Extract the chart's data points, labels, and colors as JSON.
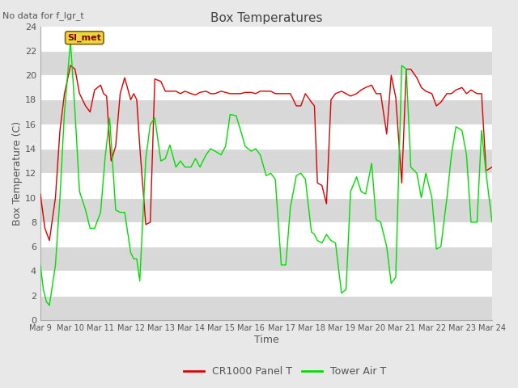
{
  "title": "Box Temperatures",
  "no_data_text": "No data for f_lgr_t",
  "si_met_label": "SI_met",
  "xlabel": "Time",
  "ylabel": "Box Temperature (C)",
  "ylim": [
    0,
    24
  ],
  "xlim": [
    0,
    15
  ],
  "xtick_labels": [
    "Mar 9",
    "Mar 10",
    "Mar 11",
    "Mar 12",
    "Mar 13",
    "Mar 14",
    "Mar 15",
    "Mar 16",
    "Mar 17",
    "Mar 18",
    "Mar 19",
    "Mar 20",
    "Mar 21",
    "Mar 22",
    "Mar 23",
    "Mar 24"
  ],
  "ytick_values": [
    0,
    2,
    4,
    6,
    8,
    10,
    12,
    14,
    16,
    18,
    20,
    22,
    24
  ],
  "red_color": "#dd0000",
  "green_color": "#00dd00",
  "fig_bg": "#e8e8e8",
  "plot_bg": "#ffffff",
  "stripe_color": "#d8d8d8",
  "legend_label_red": "CR1000 Panel T",
  "legend_label_green": "Tower Air T",
  "si_met_bg": "#e8d840",
  "si_met_border": "#8b6000",
  "si_met_text": "#8b0000",
  "red_x": [
    0.0,
    0.15,
    0.3,
    0.5,
    0.65,
    0.8,
    1.0,
    1.15,
    1.3,
    1.5,
    1.65,
    1.8,
    2.0,
    2.1,
    2.2,
    2.3,
    2.35,
    2.5,
    2.65,
    2.8,
    3.0,
    3.1,
    3.2,
    3.3,
    3.5,
    3.65,
    3.8,
    4.0,
    4.15,
    4.3,
    4.5,
    4.65,
    4.8,
    5.0,
    5.15,
    5.3,
    5.5,
    5.65,
    5.8,
    6.0,
    6.15,
    6.3,
    6.5,
    6.65,
    6.8,
    7.0,
    7.15,
    7.3,
    7.5,
    7.65,
    7.8,
    8.0,
    8.15,
    8.3,
    8.5,
    8.65,
    8.8,
    9.0,
    9.1,
    9.2,
    9.35,
    9.5,
    9.65,
    9.8,
    10.0,
    10.15,
    10.3,
    10.5,
    10.65,
    10.8,
    11.0,
    11.15,
    11.3,
    11.5,
    11.65,
    11.8,
    12.0,
    12.15,
    12.3,
    12.5,
    12.65,
    12.8,
    13.0,
    13.15,
    13.3,
    13.5,
    13.65,
    13.8,
    14.0,
    14.15,
    14.3,
    14.5,
    14.65,
    14.8,
    15.0
  ],
  "red_y": [
    10.3,
    7.5,
    6.5,
    10.0,
    15.5,
    18.5,
    20.8,
    20.5,
    18.5,
    17.5,
    17.0,
    18.8,
    19.2,
    18.5,
    18.3,
    14.5,
    13.0,
    14.2,
    18.5,
    19.8,
    18.0,
    18.5,
    18.0,
    14.2,
    7.8,
    8.0,
    19.7,
    19.5,
    18.7,
    18.7,
    18.7,
    18.5,
    18.7,
    18.5,
    18.4,
    18.6,
    18.7,
    18.5,
    18.5,
    18.7,
    18.6,
    18.5,
    18.5,
    18.5,
    18.6,
    18.6,
    18.5,
    18.7,
    18.7,
    18.7,
    18.5,
    18.5,
    18.5,
    18.5,
    17.5,
    17.5,
    18.5,
    17.8,
    17.5,
    11.2,
    11.0,
    9.5,
    18.0,
    18.5,
    18.7,
    18.5,
    18.3,
    18.5,
    18.8,
    19.0,
    19.2,
    18.5,
    18.5,
    15.2,
    20.0,
    18.2,
    11.2,
    20.5,
    20.5,
    19.8,
    19.0,
    18.7,
    18.5,
    17.5,
    17.8,
    18.5,
    18.5,
    18.8,
    19.0,
    18.5,
    18.8,
    18.5,
    18.5,
    12.2,
    12.5
  ],
  "green_x": [
    0.0,
    0.1,
    0.2,
    0.3,
    0.5,
    0.65,
    0.8,
    1.0,
    1.15,
    1.3,
    1.5,
    1.65,
    1.8,
    2.0,
    2.15,
    2.3,
    2.5,
    2.65,
    2.8,
    3.0,
    3.1,
    3.2,
    3.3,
    3.5,
    3.65,
    3.8,
    4.0,
    4.15,
    4.3,
    4.5,
    4.65,
    4.8,
    5.0,
    5.15,
    5.3,
    5.5,
    5.65,
    5.8,
    6.0,
    6.15,
    6.3,
    6.5,
    6.65,
    6.8,
    7.0,
    7.15,
    7.3,
    7.5,
    7.65,
    7.8,
    8.0,
    8.15,
    8.3,
    8.5,
    8.65,
    8.8,
    9.0,
    9.1,
    9.2,
    9.35,
    9.5,
    9.65,
    9.8,
    10.0,
    10.15,
    10.3,
    10.5,
    10.65,
    10.8,
    11.0,
    11.15,
    11.3,
    11.5,
    11.65,
    11.8,
    12.0,
    12.15,
    12.3,
    12.5,
    12.65,
    12.8,
    13.0,
    13.15,
    13.3,
    13.5,
    13.65,
    13.8,
    14.0,
    14.15,
    14.3,
    14.5,
    14.65,
    14.8,
    15.0
  ],
  "green_y": [
    4.5,
    2.5,
    1.5,
    1.2,
    4.5,
    10.0,
    17.0,
    22.8,
    17.0,
    10.5,
    9.0,
    7.5,
    7.5,
    8.8,
    13.3,
    16.5,
    9.0,
    8.8,
    8.8,
    5.5,
    5.0,
    5.0,
    3.2,
    13.2,
    16.0,
    16.5,
    13.0,
    13.2,
    14.3,
    12.5,
    13.0,
    12.5,
    12.5,
    13.2,
    12.5,
    13.5,
    14.0,
    13.8,
    13.5,
    14.2,
    16.8,
    16.7,
    15.5,
    14.2,
    13.8,
    14.0,
    13.5,
    11.8,
    12.0,
    11.5,
    4.5,
    4.5,
    9.2,
    11.8,
    12.0,
    11.5,
    7.2,
    7.0,
    6.5,
    6.3,
    7.0,
    6.5,
    6.3,
    2.2,
    2.5,
    10.5,
    11.7,
    10.5,
    10.3,
    12.8,
    8.2,
    8.0,
    6.0,
    3.0,
    3.5,
    20.8,
    20.5,
    12.5,
    12.0,
    10.0,
    12.0,
    10.0,
    5.8,
    6.0,
    10.0,
    13.5,
    15.8,
    15.5,
    13.5,
    8.0,
    8.0,
    15.5,
    12.0,
    8.0
  ]
}
